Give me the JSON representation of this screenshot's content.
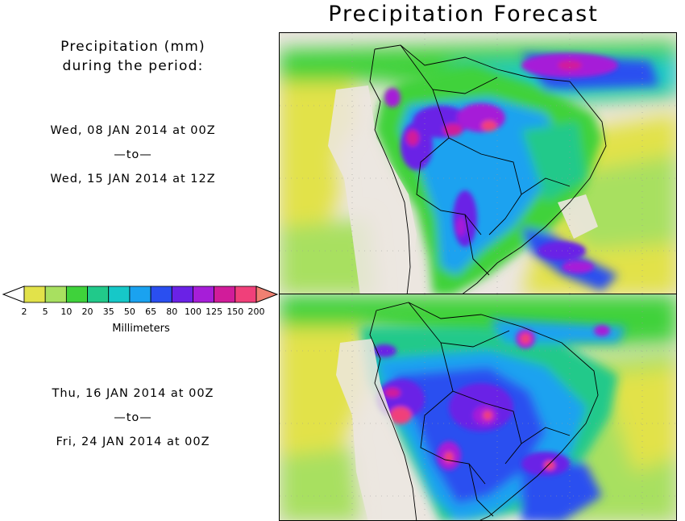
{
  "title": "Precipitation Forecast",
  "period_header": [
    "Precipitation (mm)",
    "during the period:"
  ],
  "period1": {
    "start": "Wed, 08 JAN 2014 at 00Z",
    "sep": "—to—",
    "end": "Wed, 15 JAN 2014 at 12Z"
  },
  "period2": {
    "start": "Thu, 16 JAN 2014 at 00Z",
    "sep": "—to—",
    "end": "Fri, 24 JAN 2014 at 00Z"
  },
  "legend": {
    "unit_label": "Millimeters",
    "ticks": [
      "2",
      "5",
      "10",
      "20",
      "35",
      "50",
      "65",
      "80",
      "100",
      "125",
      "150",
      "200"
    ],
    "colors": [
      "#e2e24a",
      "#a8e060",
      "#3fd23b",
      "#21c98a",
      "#16c8c8",
      "#1aa2f0",
      "#2a4ff0",
      "#6a22e6",
      "#a61ed8",
      "#d11c9a",
      "#f0407a",
      "#f08072"
    ]
  },
  "ocean_color": "#ece6e0",
  "maps": [
    {
      "label": "first-period-map"
    },
    {
      "label": "second-period-map"
    }
  ]
}
